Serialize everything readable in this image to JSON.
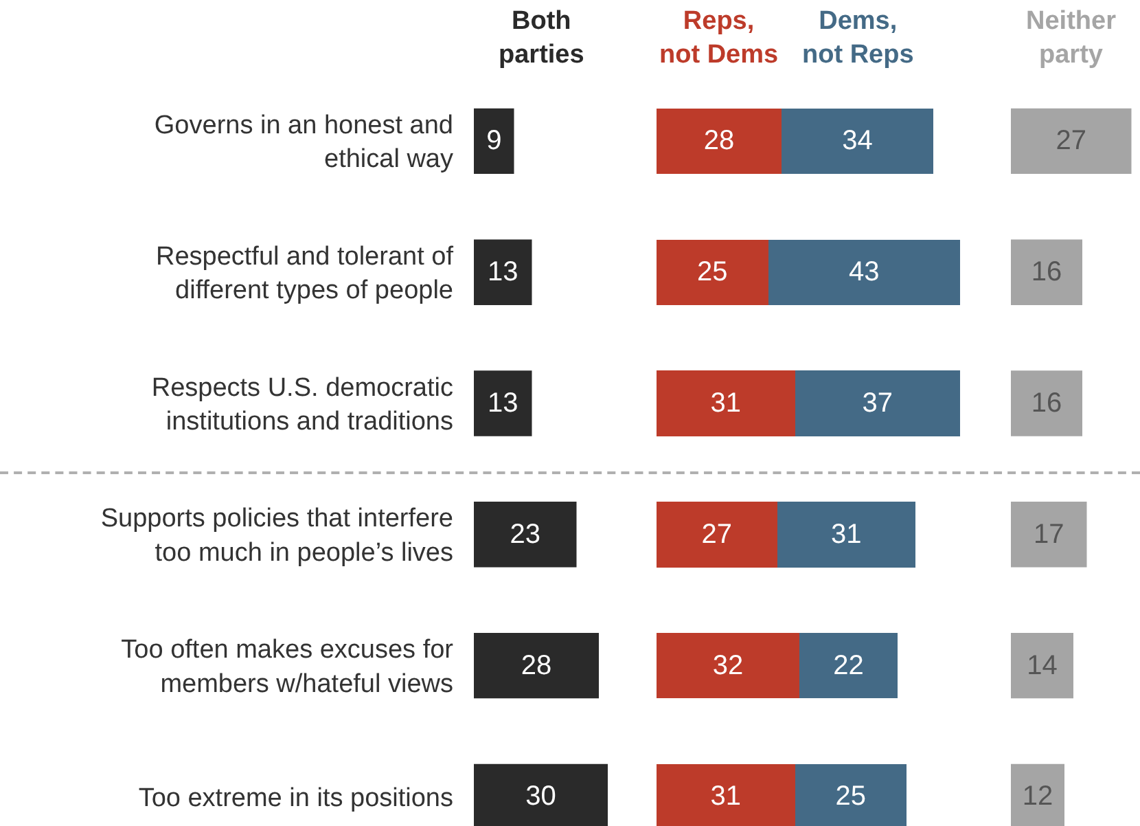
{
  "chart_data": [
    {
      "type": "bar",
      "orientation": "horizontal",
      "title": "Both parties",
      "data_labels": true,
      "categories": [
        "Governs in an honest and ethical way",
        "Respectful and tolerant of different types of people",
        "Respects U.S. democratic institutions and traditions",
        "Supports policies that interfere too much in people’s lives",
        "Too often makes excuses for members w/hateful views",
        "Too extreme in its positions"
      ],
      "series": [
        {
          "color": "#2a2a2a",
          "values": [
            9,
            13,
            13,
            23,
            28,
            30
          ]
        }
      ]
    },
    {
      "type": "bar",
      "orientation": "horizontal",
      "stacked": true,
      "data_labels": true,
      "categories": [
        null,
        null,
        null,
        null,
        null,
        null
      ],
      "series": [
        {
          "name": "Reps, not Dems",
          "color": "#bd3b2a",
          "values": [
            28,
            25,
            31,
            27,
            32,
            31
          ]
        },
        {
          "name": "Dems, not Reps",
          "color": "#446a86",
          "values": [
            34,
            43,
            37,
            31,
            22,
            25
          ]
        }
      ]
    },
    {
      "type": "bar",
      "orientation": "horizontal",
      "title": "Neither party",
      "data_labels": true,
      "categories": [
        null,
        null,
        null,
        null,
        null,
        null
      ],
      "series": [
        {
          "color": "#a5a5a5",
          "values": [
            27,
            16,
            16,
            17,
            14,
            12
          ]
        }
      ]
    }
  ]
}
